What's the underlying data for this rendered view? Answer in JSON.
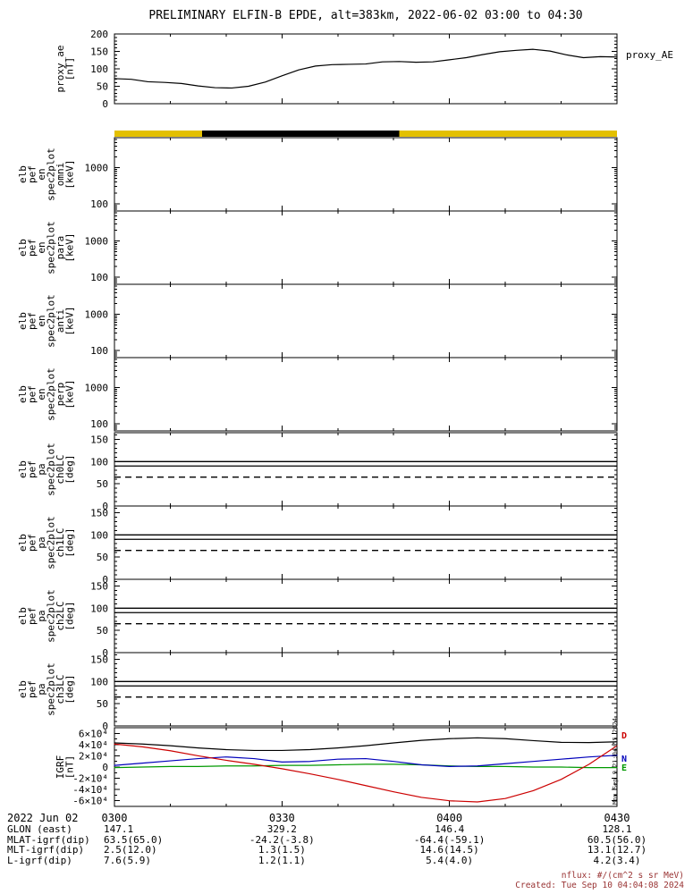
{
  "title": "PRELIMINARY ELFIN-B EPDE, alt=383km, 2022-06-02 03:00 to 04:30",
  "right_labels": {
    "proxy_ae": "proxy_AE",
    "igrf_components": [
      {
        "text": "D",
        "color": "#cc0000"
      },
      {
        "text": "N",
        "color": "#0000bb"
      },
      {
        "text": "E",
        "color": "#009900"
      }
    ]
  },
  "watermark": "Mon Sep 9 21:04:55 2024",
  "notes": {
    "flux_units": "nflux: #/(cm^2 s sr MeV)",
    "created": "Created: Tue Sep 10 04:04:08 2024",
    "color": "#993333"
  },
  "time_axis": {
    "date_label": "2022 Jun 02",
    "tick_labels": [
      "0300",
      "0330",
      "0400",
      "0430"
    ],
    "tick_minutes": [
      0,
      30,
      60,
      90
    ],
    "minor_step_min": 10,
    "start_min": 0,
    "end_min": 90
  },
  "footer_rows": [
    {
      "label": "GLON (east)",
      "values": [
        "147.1",
        "329.2",
        "146.4",
        "128.1"
      ]
    },
    {
      "label": "MLAT-igrf(dip)",
      "values": [
        "63.5(65.0)",
        "-24.2(-3.8)",
        "-64.4(-59.1)",
        "60.5(56.0)"
      ]
    },
    {
      "label": "MLT-igrf(dip)",
      "values": [
        "2.5(12.0)",
        "1.3(1.5)",
        "14.6(14.5)",
        "13.1(12.7)"
      ]
    },
    {
      "label": "L-igrf(dip)",
      "values": [
        "7.6(5.9)",
        "1.2(1.1)",
        "5.4(4.0)",
        "4.2(3.4)"
      ]
    }
  ],
  "chart_data": [
    {
      "id": "proxy_ae",
      "type": "line",
      "label_lines": [
        "proxy_ae",
        "[nT]"
      ],
      "ylim": [
        0,
        200
      ],
      "yticks": [
        0,
        50,
        100,
        150,
        200
      ],
      "color": "#000000",
      "x_minutes": [
        0,
        3,
        6,
        9,
        12,
        15,
        18,
        21,
        24,
        27,
        30,
        33,
        36,
        39,
        42,
        45,
        48,
        51,
        54,
        57,
        60,
        63,
        66,
        69,
        72,
        75,
        78,
        81,
        84,
        87,
        90
      ],
      "values": [
        72,
        70,
        63,
        61,
        58,
        51,
        46,
        45,
        50,
        62,
        80,
        97,
        108,
        112,
        113,
        114,
        120,
        121,
        119,
        120,
        126,
        132,
        141,
        149,
        153,
        156,
        151,
        140,
        132,
        135,
        134
      ]
    },
    {
      "id": "science_zone_bar",
      "type": "bar-strip",
      "segments": [
        {
          "color": "#e3c000",
          "t0": 0,
          "t1": 15.7
        },
        {
          "color": "#000000",
          "t0": 15.7,
          "t1": 51
        },
        {
          "color": "#e3c000",
          "t0": 51,
          "t1": 90
        }
      ]
    },
    {
      "id": "en_omni",
      "type": "spectrogram-empty",
      "label_lines": [
        "elb",
        "pef",
        "en",
        "spec2plot",
        "omni",
        "[keV]"
      ],
      "yscale": "log",
      "ylim": [
        63,
        6800
      ],
      "yticks": [
        100,
        1000
      ],
      "ytick_labels": [
        "100",
        "1000"
      ]
    },
    {
      "id": "en_para",
      "type": "spectrogram-empty",
      "label_lines": [
        "elb",
        "pef",
        "en",
        "spec2plot",
        "para",
        "[keV]"
      ],
      "yscale": "log",
      "ylim": [
        63,
        6800
      ],
      "yticks": [
        100,
        1000
      ],
      "ytick_labels": [
        "100",
        "1000"
      ]
    },
    {
      "id": "en_anti",
      "type": "spectrogram-empty",
      "label_lines": [
        "elb",
        "pef",
        "en",
        "spec2plot",
        "anti",
        "[keV]"
      ],
      "yscale": "log",
      "ylim": [
        63,
        6800
      ],
      "yticks": [
        100,
        1000
      ],
      "ytick_labels": [
        "100",
        "1000"
      ]
    },
    {
      "id": "en_perp",
      "type": "spectrogram-empty",
      "label_lines": [
        "elb",
        "pef",
        "en",
        "spec2plot",
        "perp",
        "[keV]"
      ],
      "yscale": "log",
      "ylim": [
        63,
        6800
      ],
      "yticks": [
        100,
        1000
      ],
      "ytick_labels": [
        "100",
        "1000"
      ]
    },
    {
      "id": "pa_ch0LC",
      "type": "line-overlay",
      "label_lines": [
        "elb",
        "pef",
        "pa",
        "spec2plot",
        "ch0LC",
        "[deg]"
      ],
      "ylim": [
        0,
        165
      ],
      "yticks": [
        0,
        50,
        100,
        150
      ],
      "solid_lines": [
        100,
        90
      ],
      "dashed_lines": [
        65
      ]
    },
    {
      "id": "pa_ch1LC",
      "type": "line-overlay",
      "label_lines": [
        "elb",
        "pef",
        "pa",
        "spec2plot",
        "ch1LC",
        "[deg]"
      ],
      "ylim": [
        0,
        165
      ],
      "yticks": [
        0,
        50,
        100,
        150
      ],
      "solid_lines": [
        100,
        90
      ],
      "dashed_lines": [
        65
      ]
    },
    {
      "id": "pa_ch2LC",
      "type": "line-overlay",
      "label_lines": [
        "elb",
        "pef",
        "pa",
        "spec2plot",
        "ch2LC",
        "[deg]"
      ],
      "ylim": [
        0,
        165
      ],
      "yticks": [
        0,
        50,
        100,
        150
      ],
      "solid_lines": [
        100,
        90
      ],
      "dashed_lines": [
        65
      ]
    },
    {
      "id": "pa_ch3LC",
      "type": "line-overlay",
      "label_lines": [
        "elb",
        "pef",
        "pa",
        "spec2plot",
        "ch3LC",
        "[deg]"
      ],
      "ylim": [
        0,
        165
      ],
      "yticks": [
        0,
        50,
        100,
        150
      ],
      "solid_lines": [
        100,
        90
      ],
      "dashed_lines": [
        65
      ]
    },
    {
      "id": "igrf",
      "type": "multi-line",
      "label_lines": [
        "IGRF",
        "[nT]"
      ],
      "ylim": [
        -70000,
        70000
      ],
      "yticks": [
        -60000,
        -40000,
        -20000,
        0,
        20000,
        40000,
        60000
      ],
      "ytick_labels": [
        "-6×10⁴",
        "-4×10⁴",
        "-2×10⁴",
        "0",
        "2×10⁴",
        "4×10⁴",
        "6×10⁴"
      ],
      "x_minutes": [
        0,
        5,
        10,
        15,
        20,
        25,
        30,
        35,
        40,
        45,
        50,
        55,
        60,
        65,
        70,
        75,
        80,
        85,
        90
      ],
      "series": [
        {
          "name": "B_east",
          "color": "#009900",
          "values": [
            -1000,
            0,
            1000,
            1000,
            2000,
            2000,
            3000,
            3000,
            4000,
            5000,
            5000,
            4000,
            2000,
            1000,
            1000,
            0,
            0,
            -1000,
            -1000
          ]
        },
        {
          "name": "B_north",
          "color": "#0000bb",
          "values": [
            3000,
            7000,
            11000,
            15000,
            18000,
            15000,
            9000,
            10000,
            14000,
            15000,
            10000,
            4000,
            1000,
            2000,
            6000,
            10000,
            14000,
            18000,
            21000
          ]
        },
        {
          "name": "B_down",
          "color": "#cc0000",
          "values": [
            41000,
            36000,
            29000,
            20000,
            12000,
            5000,
            -3000,
            -12000,
            -22000,
            -33000,
            -44000,
            -54000,
            -60000,
            -62000,
            -56000,
            -42000,
            -22000,
            5000,
            38000
          ]
        },
        {
          "name": "B_total",
          "color": "#000000",
          "values": [
            43000,
            41000,
            38000,
            34000,
            31000,
            29500,
            29500,
            31000,
            34000,
            38000,
            43000,
            47500,
            50500,
            52000,
            50500,
            47000,
            44000,
            43500,
            45000
          ]
        }
      ]
    }
  ]
}
